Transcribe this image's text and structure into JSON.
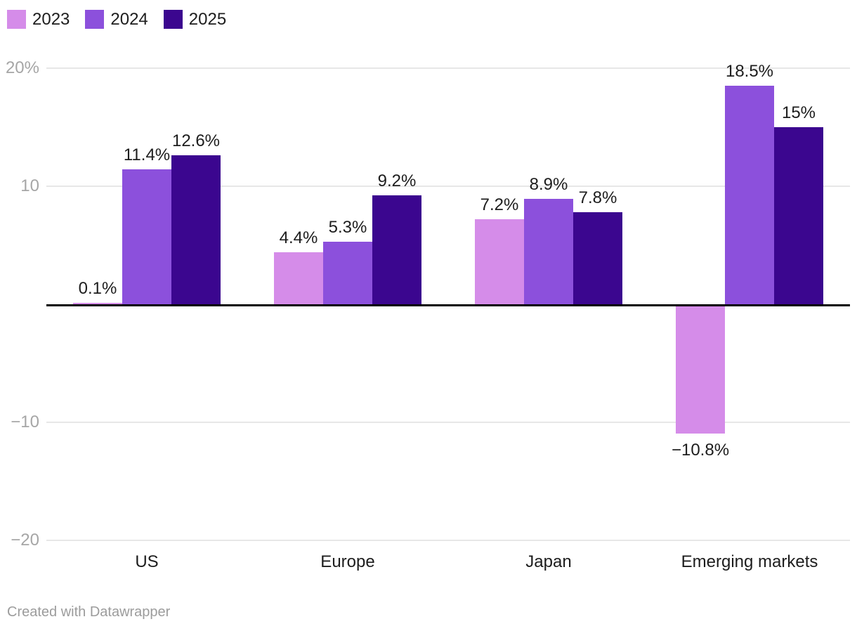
{
  "chart_data": {
    "type": "bar",
    "categories": [
      "US",
      "Europe",
      "Japan",
      "Emerging markets"
    ],
    "series": [
      {
        "name": "2023",
        "color": "#d58ce9",
        "values": [
          0.1,
          4.4,
          7.2,
          -10.8
        ],
        "labels": [
          "0.1%",
          "4.4%",
          "7.2%",
          "−10.8%"
        ]
      },
      {
        "name": "2024",
        "color": "#8c50dc",
        "values": [
          11.4,
          5.3,
          8.9,
          18.5
        ],
        "labels": [
          "11.4%",
          "5.3%",
          "8.9%",
          "18.5%"
        ]
      },
      {
        "name": "2025",
        "color": "#3b068f",
        "values": [
          12.6,
          9.2,
          7.8,
          15
        ],
        "labels": [
          "12.6%",
          "9.2%",
          "7.8%",
          "15%"
        ]
      }
    ],
    "y_axis": {
      "range": [
        -20,
        20
      ],
      "grid": true,
      "ticks": [
        {
          "value": 20,
          "label": "20%"
        },
        {
          "value": 10,
          "label": "10"
        },
        {
          "value": -10,
          "label": "−10"
        },
        {
          "value": -20,
          "label": "−20"
        }
      ]
    },
    "baseline_value": 0,
    "legend_position": "top-left",
    "title": "",
    "xlabel": "",
    "ylabel": ""
  },
  "colors": {
    "background": "#ffffff",
    "gridline": "#e7e7e7",
    "axis_line": "#000000",
    "tick_text": "#a6a6a6",
    "label_text": "#1d1d1d",
    "credit_text": "#9c9c9c"
  },
  "footer": {
    "credit": "Created with Datawrapper"
  }
}
